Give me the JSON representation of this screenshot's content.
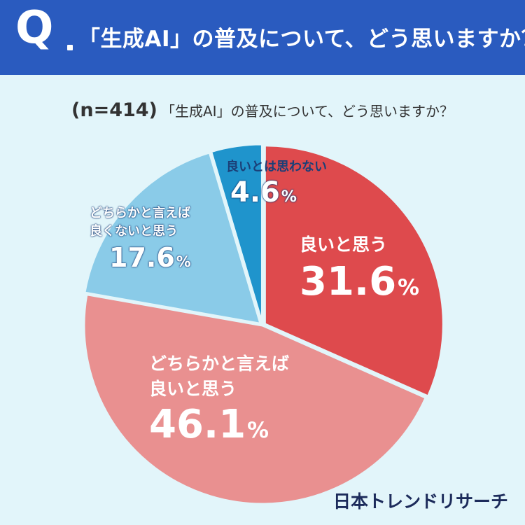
{
  "header": {
    "q_mark": "Q",
    "question": "「生成AI」の普及について、どう思いますか？",
    "bg_color": "#2a5bbf"
  },
  "subtitle": {
    "n_label": "(n=414)",
    "question": "「生成AI」の普及について、どう思いますか？"
  },
  "chart_data": {
    "type": "pie",
    "title": "「生成AI」の普及について、どう思いますか？",
    "n": 414,
    "slices": [
      {
        "label": "良いと思う",
        "value": 31.6,
        "display": "31.6",
        "color": "#de4a4d"
      },
      {
        "label": "どちらかと言えば良いと思う",
        "label_lines": [
          "どちらかと言えば",
          "良いと思う"
        ],
        "value": 46.1,
        "display": "46.1",
        "color": "#e99090"
      },
      {
        "label": "どちらかと言えば良くないと思う",
        "label_lines": [
          "どちらかと言えば",
          "良くないと思う"
        ],
        "value": 17.6,
        "display": "17.6",
        "color": "#8acbe8"
      },
      {
        "label": "良いとは思わない",
        "value": 4.6,
        "display": "4.6",
        "color": "#1f94cc"
      }
    ],
    "unit": "%",
    "legend": "none"
  },
  "brand": "日本トレンドリサーチ"
}
